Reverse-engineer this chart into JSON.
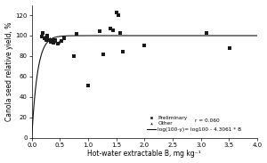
{
  "title": "",
  "xlabel": "Hot-water extractable B, mg kg⁻¹",
  "ylabel": "Canola seed relative yield, %",
  "xlim": [
    0.0,
    4.0
  ],
  "ylim": [
    0,
    130
  ],
  "yticks": [
    0,
    20,
    40,
    60,
    80,
    100,
    120
  ],
  "xticks": [
    0.0,
    0.5,
    1.0,
    1.5,
    2.0,
    2.5,
    3.0,
    3.5,
    4.0
  ],
  "preliminary_points": [
    [
      0.18,
      99
    ],
    [
      0.2,
      103
    ],
    [
      0.22,
      97
    ],
    [
      0.25,
      96
    ],
    [
      0.27,
      100
    ],
    [
      0.28,
      98
    ],
    [
      0.3,
      96
    ],
    [
      0.33,
      94
    ],
    [
      0.35,
      96
    ],
    [
      0.38,
      93
    ],
    [
      0.42,
      96
    ],
    [
      0.47,
      92
    ],
    [
      0.52,
      95
    ],
    [
      0.57,
      97
    ],
    [
      0.75,
      80
    ],
    [
      0.8,
      102
    ],
    [
      1.0,
      51
    ],
    [
      1.2,
      104
    ],
    [
      1.27,
      82
    ],
    [
      1.4,
      107
    ],
    [
      1.45,
      105
    ],
    [
      1.5,
      123
    ],
    [
      1.53,
      120
    ],
    [
      1.57,
      103
    ],
    [
      1.62,
      84
    ],
    [
      2.0,
      90
    ],
    [
      3.1,
      103
    ],
    [
      3.52,
      88
    ]
  ],
  "other_points": [
    [
      0.22,
      99
    ],
    [
      0.25,
      101
    ],
    [
      0.28,
      100
    ],
    [
      0.32,
      97
    ],
    [
      0.37,
      97
    ],
    [
      0.42,
      95
    ],
    [
      0.48,
      94
    ]
  ],
  "legend_equation": "log(100-y)= log100 - 4.3061 * B",
  "legend_r": "r = 0.060",
  "curve_coef_a": 4.3061,
  "background_color": "#ffffff",
  "marker_color": "#1a1a1a",
  "line_color": "#111111",
  "figsize": [
    3.0,
    1.83
  ],
  "dpi": 100
}
